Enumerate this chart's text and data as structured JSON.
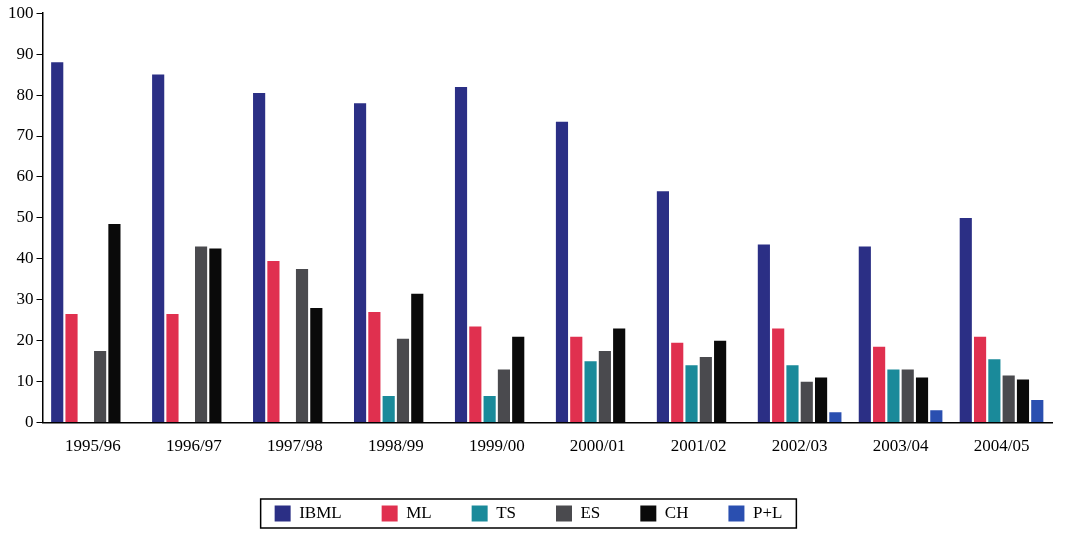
{
  "chart_data": {
    "type": "bar",
    "categories": [
      "1995/96",
      "1996/97",
      "1997/98",
      "1998/99",
      "1999/00",
      "2000/01",
      "2001/02",
      "2002/03",
      "2003/04",
      "2004/05"
    ],
    "series": [
      {
        "name": "IBML",
        "color": "#2b2f85",
        "values": [
          88,
          85,
          80.5,
          78,
          82,
          73.5,
          56.5,
          43.5,
          43,
          50
        ]
      },
      {
        "name": "ML",
        "color": "#e0304f",
        "values": [
          26.5,
          26.5,
          39.5,
          27,
          23.5,
          21,
          19.5,
          23,
          18.5,
          21
        ]
      },
      {
        "name": "TS",
        "color": "#1a8a9a",
        "values": [
          null,
          null,
          null,
          6.5,
          6.5,
          15,
          14,
          14,
          13,
          15.5
        ]
      },
      {
        "name": "ES",
        "color": "#4a4a4e",
        "values": [
          17.5,
          43,
          37.5,
          20.5,
          13,
          17.5,
          16,
          10,
          13,
          11.5
        ]
      },
      {
        "name": "CH",
        "color": "#0a0a0a",
        "values": [
          48.5,
          42.5,
          28,
          31.5,
          21,
          23,
          20,
          11,
          11,
          10.5
        ]
      },
      {
        "name": "P+L",
        "color": "#2a4fb0",
        "values": [
          null,
          null,
          null,
          null,
          null,
          null,
          null,
          2.5,
          3,
          5.5
        ]
      }
    ],
    "ylim": [
      0,
      100
    ],
    "yticks": [
      0,
      10,
      20,
      30,
      40,
      50,
      60,
      70,
      80,
      90,
      100
    ],
    "grid": false,
    "legend": "bottom"
  }
}
